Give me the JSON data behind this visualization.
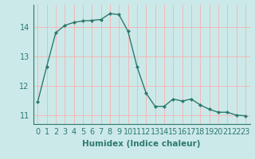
{
  "x": [
    0,
    1,
    2,
    3,
    4,
    5,
    6,
    7,
    8,
    9,
    10,
    11,
    12,
    13,
    14,
    15,
    16,
    17,
    18,
    19,
    20,
    21,
    22,
    23
  ],
  "y": [
    11.45,
    12.65,
    13.8,
    14.05,
    14.15,
    14.2,
    14.22,
    14.25,
    14.45,
    14.42,
    13.85,
    12.65,
    11.75,
    11.3,
    11.3,
    11.55,
    11.48,
    11.55,
    11.35,
    11.2,
    11.1,
    11.1,
    11.0,
    10.98
  ],
  "line_color": "#2d7a6e",
  "marker": "D",
  "marker_size": 2.0,
  "bg_color": "#cce9e9",
  "grid_color": "#f0b8b8",
  "xlabel": "Humidex (Indice chaleur)",
  "ylim": [
    10.7,
    14.75
  ],
  "xlim": [
    -0.5,
    23.5
  ],
  "yticks": [
    11,
    12,
    13,
    14
  ],
  "xtick_labels": [
    "0",
    "1",
    "2",
    "3",
    "4",
    "5",
    "6",
    "7",
    "8",
    "9",
    "10",
    "11",
    "12",
    "13",
    "14",
    "15",
    "16",
    "17",
    "18",
    "19",
    "20",
    "21",
    "22",
    "23"
  ],
  "xlabel_fontsize": 7.5,
  "tick_fontsize": 7,
  "spine_color": "#2d7a6e",
  "linewidth": 1.0
}
